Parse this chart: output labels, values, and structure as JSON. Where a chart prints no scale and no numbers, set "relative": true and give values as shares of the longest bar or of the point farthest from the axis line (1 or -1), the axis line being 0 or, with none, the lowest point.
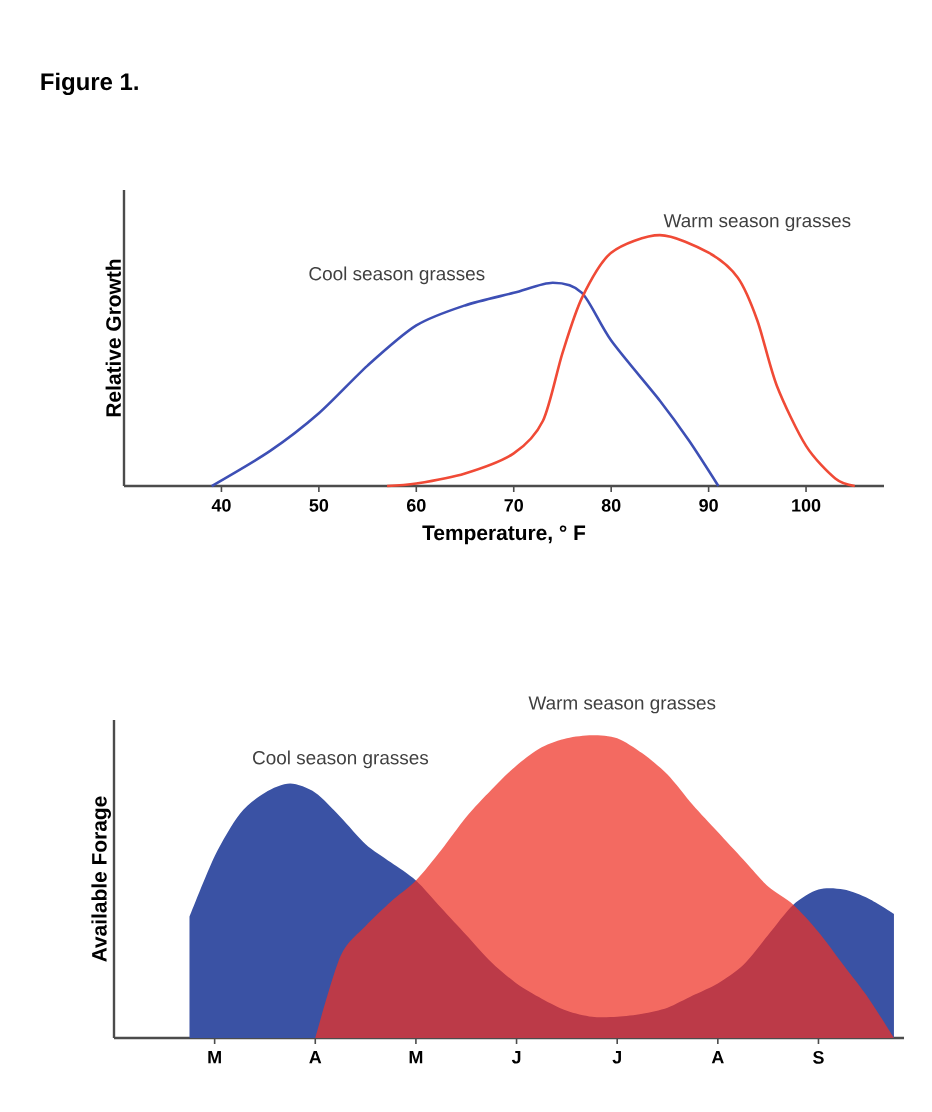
{
  "chart_data": [
    {
      "type": "line",
      "title": "Figure 1.",
      "xlabel": "Temperature, ° F",
      "ylabel": "Relative Growth",
      "relative": true,
      "xlim": [
        30,
        108
      ],
      "xticks": [
        40,
        50,
        60,
        70,
        80,
        90,
        100
      ],
      "series": [
        {
          "name": "Cool season grasses",
          "color": "#3d4fb5",
          "x": [
            39,
            45,
            50,
            55,
            60,
            65,
            70,
            74,
            77,
            80,
            85,
            88,
            91
          ],
          "values": [
            0,
            0.14,
            0.29,
            0.48,
            0.64,
            0.72,
            0.77,
            0.81,
            0.77,
            0.58,
            0.34,
            0.18,
            0
          ]
        },
        {
          "name": "Warm season grasses",
          "color": "#f04a36",
          "x": [
            57,
            60,
            65,
            70,
            73,
            75,
            77,
            80,
            85,
            90,
            93,
            95,
            97,
            100,
            103,
            105
          ],
          "values": [
            0,
            0.01,
            0.05,
            0.13,
            0.26,
            0.53,
            0.75,
            0.93,
            1,
            0.93,
            0.83,
            0.66,
            0.4,
            0.16,
            0.03,
            0
          ]
        }
      ]
    },
    {
      "type": "area",
      "ylabel": "Available Forage",
      "relative": true,
      "categories": [
        null,
        "M",
        null,
        null,
        null,
        "A",
        null,
        null,
        null,
        "M",
        null,
        null,
        null,
        "J",
        null,
        null,
        null,
        "J",
        null,
        null,
        null,
        "A",
        null,
        null,
        null,
        "S",
        null,
        null,
        null
      ],
      "series": [
        {
          "name": "Cool season grasses",
          "color": "#3a52a4",
          "values": [
            0.4,
            0.6,
            0.74,
            0.81,
            0.84,
            0.81,
            0.73,
            0.64,
            0.58,
            0.52,
            0.43,
            0.34,
            0.25,
            0.18,
            0.13,
            0.09,
            0.07,
            0.07,
            0.08,
            0.1,
            0.14,
            0.18,
            0.24,
            0.34,
            0.44,
            0.49,
            0.49,
            0.46,
            0.41
          ]
        },
        {
          "name": "Warm season grasses",
          "color": "#ee3124",
          "values": [
            null,
            null,
            null,
            null,
            null,
            0,
            0.27,
            0.37,
            0.45,
            0.52,
            0.62,
            0.73,
            0.82,
            0.9,
            0.96,
            0.99,
            1.0,
            0.99,
            0.94,
            0.87,
            0.77,
            0.68,
            0.59,
            0.5,
            0.44,
            0.35,
            0.24,
            0.13,
            0
          ]
        }
      ]
    }
  ]
}
